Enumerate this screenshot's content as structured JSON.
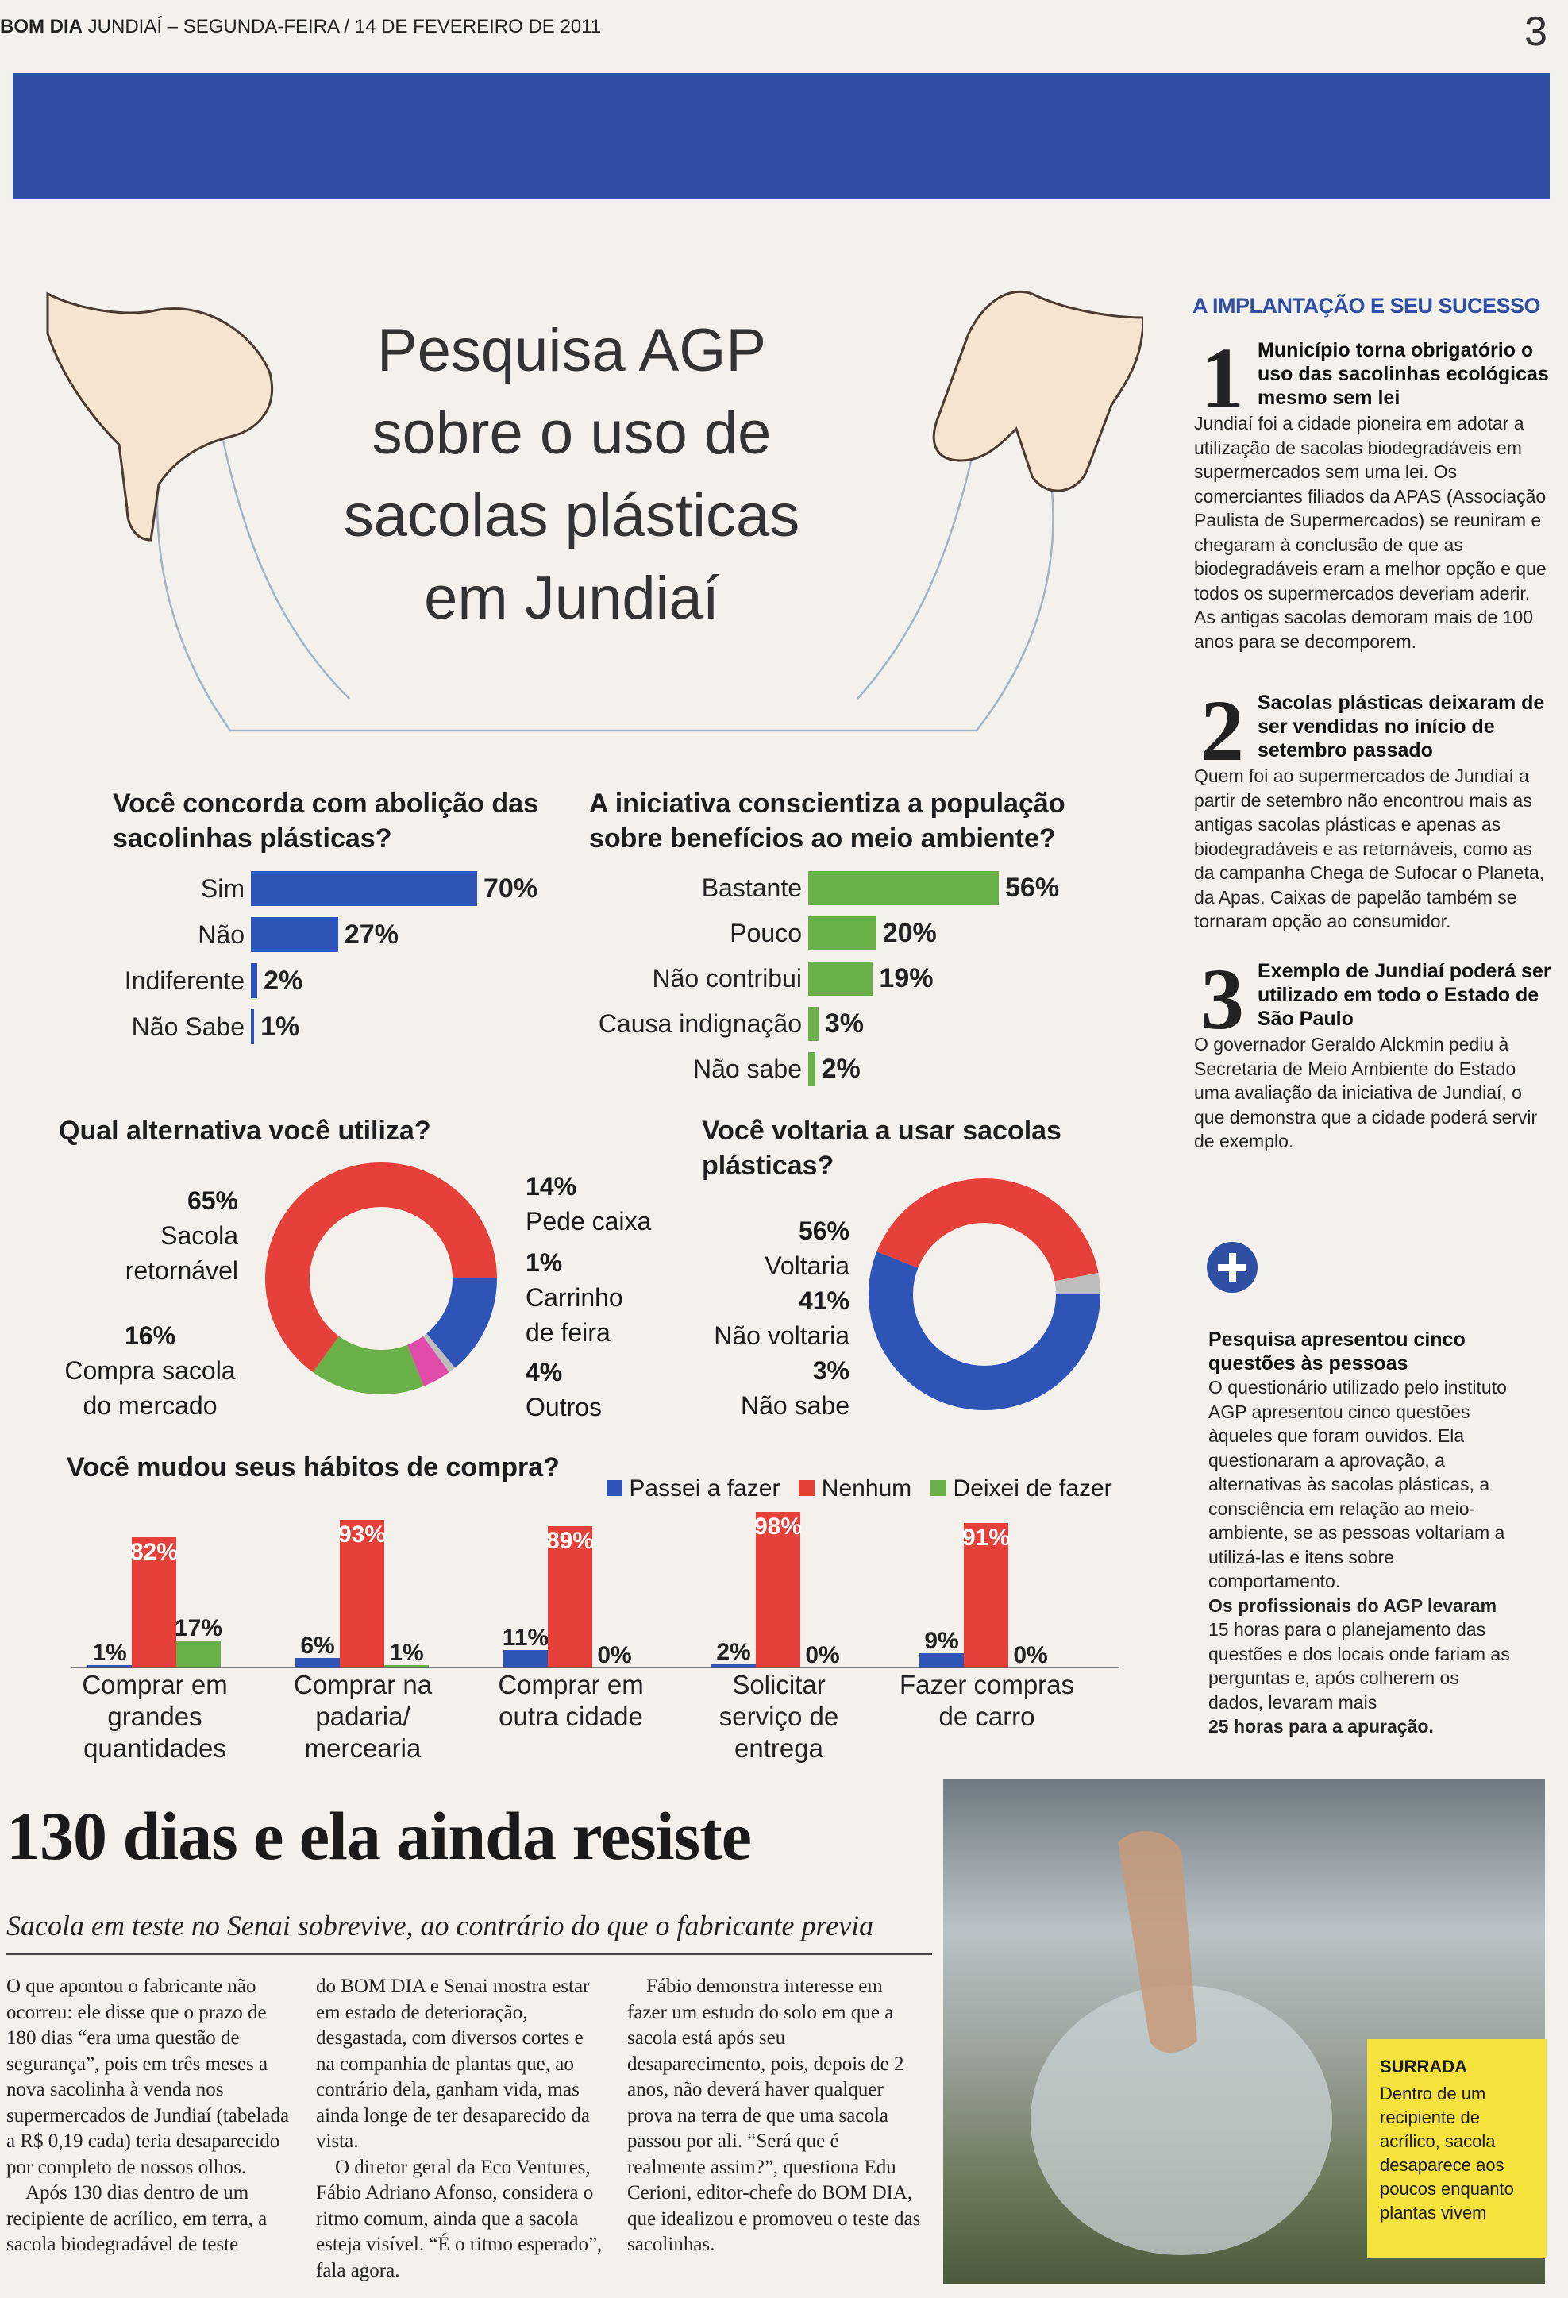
{
  "header": {
    "brand": "BOM DIA",
    "meta": " JUNDIAÍ – SEGUNDA-FEIRA / 14 DE FEVEREIRO DE 2011",
    "page": "3"
  },
  "colors": {
    "blue": "#2f54b8",
    "red": "#e5403a",
    "green": "#6ab048",
    "bar": "#2f4fa3",
    "yellow": "#f6e23c"
  },
  "title": {
    "l1": "Pesquisa AGP",
    "l2": "sobre o uso de",
    "l3": "sacolas plásticas",
    "l4": "em Jundiaí"
  },
  "q1": {
    "question": "Você concorda com abolição das sacolinhas plásticas?",
    "items": [
      {
        "label": "Sim",
        "pct": "70%",
        "value": 70
      },
      {
        "label": "Não",
        "pct": "27%",
        "value": 27
      },
      {
        "label": "Indiferente",
        "pct": "2%",
        "value": 2
      },
      {
        "label": "Não Sabe",
        "pct": "1%",
        "value": 1
      }
    ]
  },
  "q2": {
    "question": "A iniciativa conscientiza a população sobre benefícios ao meio ambiente?",
    "items": [
      {
        "label": "Bastante",
        "pct": "56%",
        "value": 56
      },
      {
        "label": "Pouco",
        "pct": "20%",
        "value": 20
      },
      {
        "label": "Não contribui",
        "pct": "19%",
        "value": 19
      },
      {
        "label": "Causa indignação",
        "pct": "3%",
        "value": 3
      },
      {
        "label": "Não sabe",
        "pct": "2%",
        "value": 2
      }
    ]
  },
  "q3": {
    "question": "Qual alternativa você utiliza?",
    "a": {
      "pct": "65%",
      "text": "Sacola retornável",
      "value": 65
    },
    "b": {
      "pct": "16%",
      "text": "Compra sacola do mercado",
      "value": 16
    },
    "c": {
      "pct": "14%",
      "text": "Pede caixa",
      "value": 14
    },
    "d": {
      "pct": "1%",
      "text": "Carrinho de feira",
      "value": 1
    },
    "e": {
      "pct": "4%",
      "text": "Outros",
      "value": 4
    }
  },
  "q4": {
    "question": "Você voltaria a usar sacolas plásticas?",
    "a": {
      "pct": "56%",
      "text": "Voltaria",
      "value": 56
    },
    "b": {
      "pct": "41%",
      "text": "Não voltaria",
      "value": 41
    },
    "c": {
      "pct": "3%",
      "text": "Não sabe",
      "value": 3
    }
  },
  "q5": {
    "question": "Você mudou seus hábitos de compra?",
    "legend": [
      "Passei a fazer",
      "Nenhum",
      "Deixei de fazer"
    ],
    "groups": [
      {
        "label": "Comprar em grandes quantidades",
        "values": [
          1,
          82,
          17
        ],
        "pcts": [
          "1%",
          "82%",
          "17%"
        ]
      },
      {
        "label": "Comprar na padaria/ mercearia",
        "values": [
          6,
          93,
          1
        ],
        "pcts": [
          "6%",
          "93%",
          "1%"
        ]
      },
      {
        "label": "Comprar em outra cidade",
        "values": [
          11,
          89,
          0
        ],
        "pcts": [
          "11%",
          "89%",
          "0%"
        ]
      },
      {
        "label": "Solicitar serviço de entrega",
        "values": [
          2,
          98,
          0
        ],
        "pcts": [
          "2%",
          "98%",
          "0%"
        ]
      },
      {
        "label": "Fazer compras de carro",
        "values": [
          9,
          91,
          0
        ],
        "pcts": [
          "9%",
          "91%",
          "0%"
        ]
      }
    ]
  },
  "side": {
    "heading": "A IMPLANTAÇÃO E SEU SUCESSO",
    "items": [
      {
        "n": "1",
        "title": "Município torna obrigatório o uso das sacolinhas ecológicas mesmo sem lei",
        "text": "Jundiaí foi a cidade pioneira em adotar a utilização de sacolas biodegradáveis em supermercados sem uma lei. Os comerciantes filiados da APAS (Associação Paulista de Supermercados) se reuniram e chegaram à conclusão de que as biodegradáveis eram a melhor opção e que todos os supermercados deveriam aderir. As antigas sacolas demoram mais de 100 anos para se decomporem."
      },
      {
        "n": "2",
        "title": "Sacolas plásticas deixaram de ser vendidas no início de setembro passado",
        "text": "Quem foi ao supermercados de Jundiaí a partir de setembro não encontrou mais as antigas sacolas plásticas e apenas as biodegradáveis e as retornáveis, como as da campanha Chega de Sufocar o Planeta, da Apas. Caixas de papelão também se tornaram opção ao consumidor."
      },
      {
        "n": "3",
        "title": "Exemplo de Jundiaí poderá ser utilizado em todo o Estado de São Paulo",
        "text": "O governador Geraldo Alckmin pediu à Secretaria de Meio Ambiente do Estado uma avaliação da iniciativa de Jundiaí, o que demonstra que a cidade poderá servir de exemplo."
      }
    ],
    "plus_title": "Pesquisa apresentou cinco questões às pessoas",
    "plus_text1": "O questionário utilizado pelo instituto AGP apresentou cinco questões àqueles que foram ouvidos. Ela questionaram a aprovação, a alternativas às sacolas plásticas, a consciência em relação ao meio-ambiente, se as pessoas voltariam a utilizá-las e itens sobre comportamento.",
    "plus_text2": "Os profissionais do AGP levaram",
    "plus_text3": "15 horas para o planejamento das questões e dos locais onde fariam as perguntas e, após colherem os dados, levaram mais",
    "plus_text4": "25 horas para a apuração."
  },
  "article": {
    "headline": "130 dias e ela ainda resiste",
    "deck": "Sacola em teste no Senai sobrevive, ao contrário do que o fabricante previa",
    "col1": "O que apontou o fabricante não ocorreu: ele disse que o prazo de 180 dias “era uma questão de segurança”, pois em três meses a nova sacolinha à venda nos supermercados de Jundiaí (tabelada a R$ 0,19 cada) teria desaparecido por completo de nossos olhos.",
    "col1b": "Após 130 dias dentro de um recipiente de acrílico, em terra, a sacola biodegradável de teste",
    "col2": "do BOM DIA e Senai mostra estar em estado de deterioração, desgastada, com diversos cortes e na companhia de plantas que, ao contrário dela, ganham vida, mas ainda longe de ter desaparecido da vista.",
    "col2b": "O diretor geral da Eco Ventures, Fábio Adriano Afonso, considera o ritmo comum, ainda que a sacola esteja visível. “É o ritmo esperado”, fala agora.",
    "col3": "Fábio demonstra interesse em fazer um estudo do solo em que a sacola está após seu desaparecimento, pois, depois de 2 anos, não deverá haver qualquer prova na terra de que uma sacola passou por ali. “Será que é realmente assim?”, questiona Edu Cerioni, editor-chefe do BOM DIA, que idealizou e promoveu o teste das sacolinhas.",
    "note_title": "SURRADA",
    "note_text": "Dentro de um recipiente de acrílico, sacola desaparece aos poucos enquanto plantas vivem"
  }
}
